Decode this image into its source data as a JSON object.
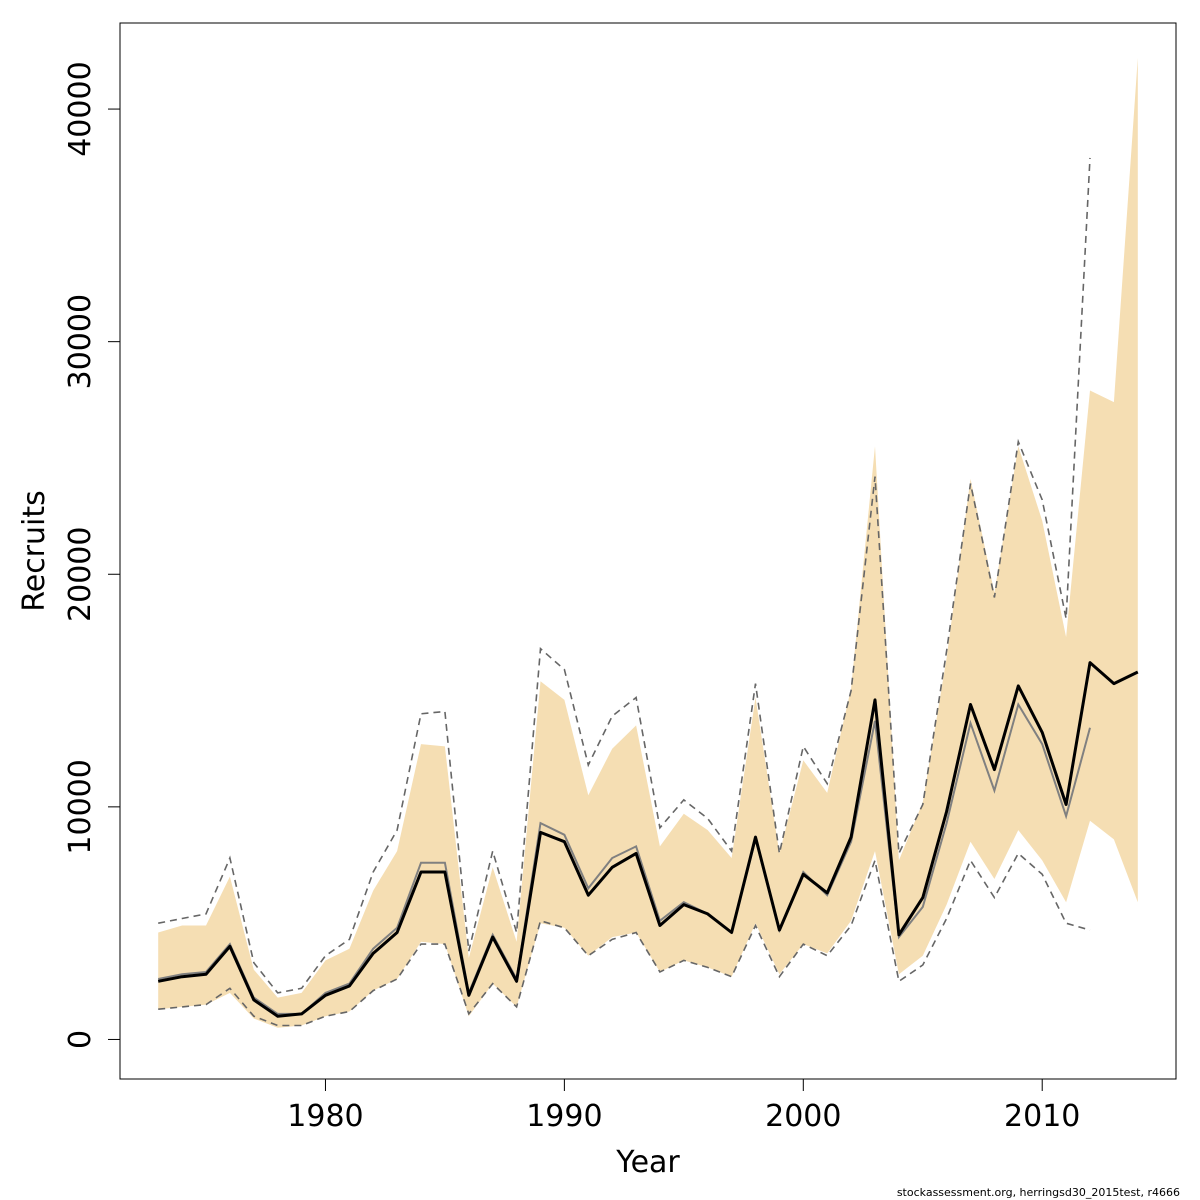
{
  "chart_data": {
    "type": "area",
    "title": "",
    "xlabel": "Year",
    "ylabel": "Recruits",
    "xlim": [
      1971.4,
      2015.6
    ],
    "ylim": [
      -1700,
      43700
    ],
    "x_ticks": [
      1980,
      1990,
      2000,
      2010
    ],
    "x_tick_labels": [
      "1980",
      "1990",
      "2000",
      "2010"
    ],
    "y_ticks": [
      0,
      10000,
      20000,
      30000,
      40000
    ],
    "y_tick_labels": [
      "0",
      "10000",
      "20000",
      "30000",
      "40000"
    ],
    "grid": false,
    "legend": "none",
    "colors": {
      "band": "#f5deb3",
      "current": "#000000",
      "previous": "#808080",
      "previous_ci": "#666666"
    },
    "current": {
      "years": [
        1973,
        1974,
        1975,
        1976,
        1977,
        1978,
        1979,
        1980,
        1981,
        1982,
        1983,
        1984,
        1985,
        1986,
        1987,
        1988,
        1989,
        1990,
        1991,
        1992,
        1993,
        1994,
        1995,
        1996,
        1997,
        1998,
        1999,
        2000,
        2001,
        2002,
        2003,
        2004,
        2005,
        2006,
        2007,
        2008,
        2009,
        2010,
        2011,
        2012,
        2013,
        2014
      ],
      "estimate": [
        2500,
        2700,
        2800,
        4000,
        1700,
        1000,
        1100,
        1900,
        2300,
        3700,
        4600,
        7200,
        7200,
        1900,
        4400,
        2500,
        8900,
        8500,
        6200,
        7400,
        8000,
        4900,
        5800,
        5400,
        4600,
        8700,
        4700,
        7100,
        6300,
        8700,
        14600,
        4500,
        6100,
        9800,
        14400,
        11600,
        15200,
        13200,
        10100,
        16200,
        15300,
        15800
      ],
      "lower": [
        1300,
        1400,
        1500,
        2000,
        900,
        500,
        600,
        1000,
        1200,
        2100,
        2600,
        4200,
        4100,
        1000,
        2400,
        1400,
        5000,
        4800,
        3600,
        4400,
        4600,
        2900,
        3400,
        3100,
        2700,
        5000,
        2800,
        4100,
        3700,
        5100,
        8100,
        2800,
        3600,
        5800,
        8500,
        6900,
        9000,
        7700,
        5900,
        9400,
        8600,
        5900
      ],
      "upper": [
        4600,
        4900,
        4900,
        7000,
        3000,
        1800,
        2000,
        3400,
        3900,
        6400,
        8100,
        12700,
        12600,
        3500,
        7400,
        4200,
        15400,
        14600,
        10500,
        12500,
        13500,
        8300,
        9700,
        9000,
        7800,
        14700,
        8000,
        12000,
        10600,
        15100,
        25500,
        7700,
        10200,
        16400,
        24100,
        19200,
        25500,
        22300,
        17300,
        27900,
        27400,
        42200
      ]
    },
    "previous": {
      "years": [
        1973,
        1974,
        1975,
        1976,
        1977,
        1978,
        1979,
        1980,
        1981,
        1982,
        1983,
        1984,
        1985,
        1986,
        1987,
        1988,
        1989,
        1990,
        1991,
        1992,
        1993,
        1994,
        1995,
        1996,
        1997,
        1998,
        1999,
        2000,
        2001,
        2002,
        2003,
        2004,
        2005,
        2006,
        2007,
        2008,
        2009,
        2010,
        2011,
        2012
      ],
      "estimate": [
        2600,
        2800,
        2900,
        4100,
        1800,
        1100,
        1100,
        2000,
        2400,
        3900,
        4800,
        7600,
        7600,
        2000,
        4500,
        2600,
        9300,
        8800,
        6500,
        7800,
        8300,
        5100,
        5900,
        5400,
        4600,
        8600,
        4700,
        7200,
        6200,
        8500,
        13700,
        4400,
        5700,
        9300,
        13600,
        10700,
        14400,
        12700,
        9600,
        13400
      ],
      "lower": [
        1300,
        1400,
        1500,
        2200,
        1000,
        600,
        600,
        1000,
        1200,
        2100,
        2600,
        4100,
        4100,
        1100,
        2400,
        1400,
        5100,
        4800,
        3600,
        4300,
        4600,
        2900,
        3400,
        3100,
        2700,
        4900,
        2700,
        4100,
        3600,
        4900,
        7700,
        2500,
        3200,
        5200,
        7700,
        6100,
        8000,
        7100,
        5000,
        4700
      ],
      "upper": [
        5000,
        5200,
        5400,
        7800,
        3300,
        2000,
        2200,
        3600,
        4300,
        7200,
        9000,
        14000,
        14100,
        3800,
        8100,
        4600,
        16800,
        15900,
        11800,
        13900,
        14700,
        9100,
        10300,
        9500,
        8100,
        15300,
        8000,
        12600,
        11000,
        15000,
        24200,
        8000,
        10100,
        16700,
        23900,
        19000,
        25700,
        23200,
        18100,
        37900
      ]
    },
    "footer": "stockassessment.org, herringsd30_2015test, r4666"
  }
}
